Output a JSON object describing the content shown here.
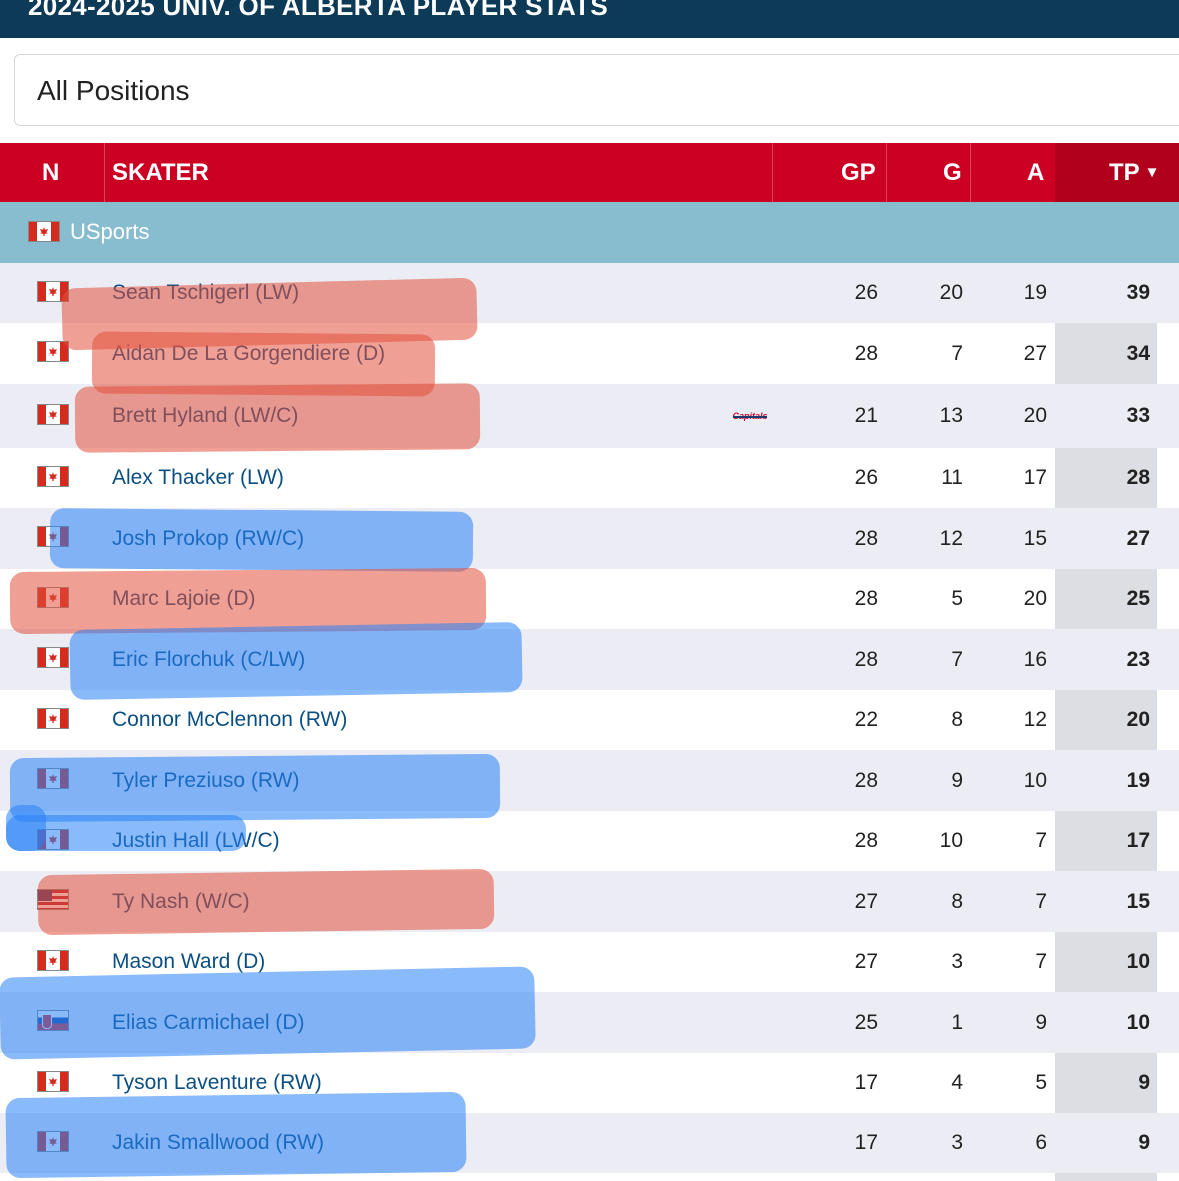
{
  "header": {
    "title": "2024-2025 UNIV. OF ALBERTA PLAYER STATS"
  },
  "filter": {
    "selected": "All Positions"
  },
  "table": {
    "columns": {
      "n": "N",
      "skater": "SKATER",
      "gp": "GP",
      "g": "G",
      "a": "A",
      "tp": "TP",
      "sort_indicator": "▼"
    },
    "group": {
      "label": "USports",
      "flag": "canada-flag-icon"
    },
    "rows": [
      {
        "flag": "ca",
        "name": "Sean Tschigerl (LW)",
        "gp": "26",
        "g": "20",
        "a": "19",
        "tp": "39",
        "highlight": "red"
      },
      {
        "flag": "ca",
        "name": "Aidan De La Gorgendiere (D)",
        "gp": "28",
        "g": "7",
        "a": "27",
        "tp": "34",
        "highlight": "red"
      },
      {
        "flag": "ca",
        "name": "Brett Hyland (LW/C)",
        "gp": "21",
        "g": "13",
        "a": "20",
        "tp": "33",
        "highlight": "red",
        "team_logo": "Capitals"
      },
      {
        "flag": "ca",
        "name": "Alex Thacker (LW)",
        "gp": "26",
        "g": "11",
        "a": "17",
        "tp": "28",
        "highlight": "none"
      },
      {
        "flag": "ca",
        "name": "Josh Prokop (RW/C)",
        "gp": "28",
        "g": "12",
        "a": "15",
        "tp": "27",
        "highlight": "blue"
      },
      {
        "flag": "ca",
        "name": "Marc Lajoie (D)",
        "gp": "28",
        "g": "5",
        "a": "20",
        "tp": "25",
        "highlight": "red"
      },
      {
        "flag": "ca",
        "name": "Eric Florchuk (C/LW)",
        "gp": "28",
        "g": "7",
        "a": "16",
        "tp": "23",
        "highlight": "blue"
      },
      {
        "flag": "ca",
        "name": "Connor McClennon (RW)",
        "gp": "22",
        "g": "8",
        "a": "12",
        "tp": "20",
        "highlight": "none"
      },
      {
        "flag": "ca",
        "name": "Tyler Preziuso (RW)",
        "gp": "28",
        "g": "9",
        "a": "10",
        "tp": "19",
        "highlight": "blue"
      },
      {
        "flag": "ca",
        "name": "Justin Hall (LW/C)",
        "gp": "28",
        "g": "10",
        "a": "7",
        "tp": "17",
        "highlight": "blue"
      },
      {
        "flag": "us",
        "name": "Ty Nash (W/C)",
        "gp": "27",
        "g": "8",
        "a": "7",
        "tp": "15",
        "highlight": "red"
      },
      {
        "flag": "ca",
        "name": "Mason Ward (D)",
        "gp": "27",
        "g": "3",
        "a": "7",
        "tp": "10",
        "highlight": "none"
      },
      {
        "flag": "sk",
        "name": "Elias Carmichael (D)",
        "gp": "25",
        "g": "1",
        "a": "9",
        "tp": "10",
        "highlight": "blue"
      },
      {
        "flag": "ca",
        "name": "Tyson Laventure (RW)",
        "gp": "17",
        "g": "4",
        "a": "5",
        "tp": "9",
        "highlight": "none"
      },
      {
        "flag": "ca",
        "name": "Jakin Smallwood (RW)",
        "gp": "17",
        "g": "3",
        "a": "6",
        "tp": "9",
        "highlight": "blue"
      }
    ]
  },
  "colors": {
    "title_bar": "#0d3a56",
    "header_row": "#cc0022",
    "group_row": "#88bdd0",
    "link_text": "#0b4f82",
    "highlight_red": "#e1503c",
    "highlight_blue": "#2882f5"
  }
}
